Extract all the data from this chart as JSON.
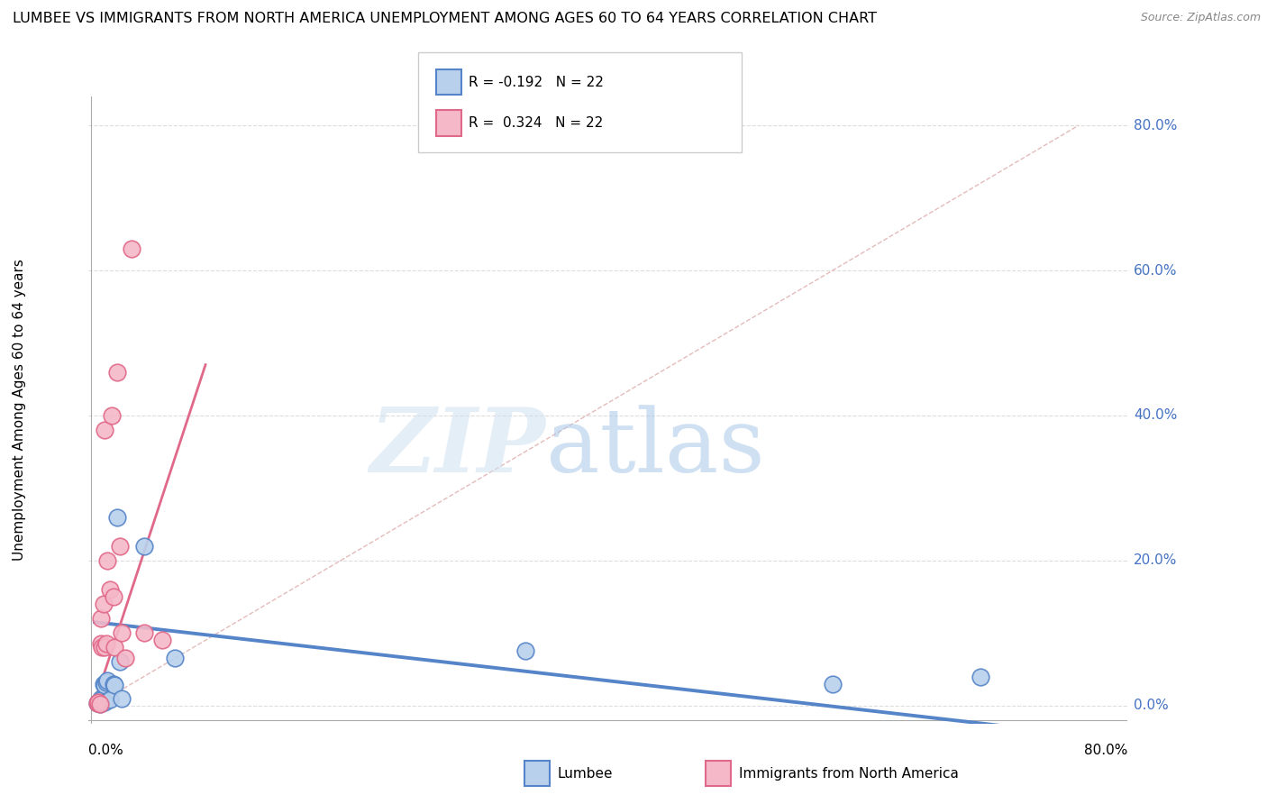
{
  "title": "LUMBEE VS IMMIGRANTS FROM NORTH AMERICA UNEMPLOYMENT AMONG AGES 60 TO 64 YEARS CORRELATION CHART",
  "source": "Source: ZipAtlas.com",
  "ylabel": "Unemployment Among Ages 60 to 64 years",
  "legend_lumbee": "Lumbee",
  "legend_immigrants": "Immigrants from North America",
  "R_lumbee": -0.192,
  "R_immigrants": 0.324,
  "N_lumbee": 22,
  "N_immigrants": 22,
  "lumbee_color": "#b8d0ec",
  "immigrants_color": "#f5b8c8",
  "lumbee_line_color": "#5585c8",
  "immigrants_line_color": "#e06888",
  "diagonal_color": "#ddaaaa",
  "watermark_zip_color": "#c8ddf0",
  "watermark_atlas_color": "#aac8e8",
  "lumbee_x": [
    0.002,
    0.003,
    0.004,
    0.005,
    0.005,
    0.006,
    0.007,
    0.008,
    0.008,
    0.009,
    0.01,
    0.012,
    0.015,
    0.016,
    0.018,
    0.02,
    0.022,
    0.04,
    0.065,
    0.35,
    0.6,
    0.72
  ],
  "lumbee_y": [
    0.003,
    0.005,
    0.002,
    0.01,
    0.003,
    0.008,
    0.03,
    0.028,
    0.005,
    0.032,
    0.034,
    0.008,
    0.03,
    0.028,
    0.26,
    0.06,
    0.01,
    0.22,
    0.065,
    0.075,
    0.03,
    0.04
  ],
  "immigrants_x": [
    0.002,
    0.003,
    0.004,
    0.005,
    0.005,
    0.006,
    0.007,
    0.008,
    0.008,
    0.009,
    0.01,
    0.012,
    0.014,
    0.015,
    0.016,
    0.018,
    0.02,
    0.022,
    0.025,
    0.03,
    0.04,
    0.055
  ],
  "immigrants_y": [
    0.003,
    0.005,
    0.002,
    0.12,
    0.085,
    0.08,
    0.14,
    0.08,
    0.38,
    0.085,
    0.2,
    0.16,
    0.4,
    0.15,
    0.08,
    0.46,
    0.22,
    0.1,
    0.065,
    0.63,
    0.1,
    0.09
  ],
  "lumbee_trendline_x": [
    0.0,
    0.8
  ],
  "lumbee_trendline_y": [
    0.115,
    -0.04
  ],
  "immigrants_trendline_x": [
    0.0,
    0.09
  ],
  "immigrants_trendline_y": [
    0.005,
    0.47
  ],
  "xmin": -0.005,
  "xmax": 0.84,
  "ymin": -0.025,
  "ymax": 0.84,
  "ytick_vals": [
    0.0,
    0.2,
    0.4,
    0.6,
    0.8
  ],
  "ytick_labels": [
    "0.0%",
    "20.0%",
    "40.0%",
    "60.0%",
    "80.0%"
  ]
}
